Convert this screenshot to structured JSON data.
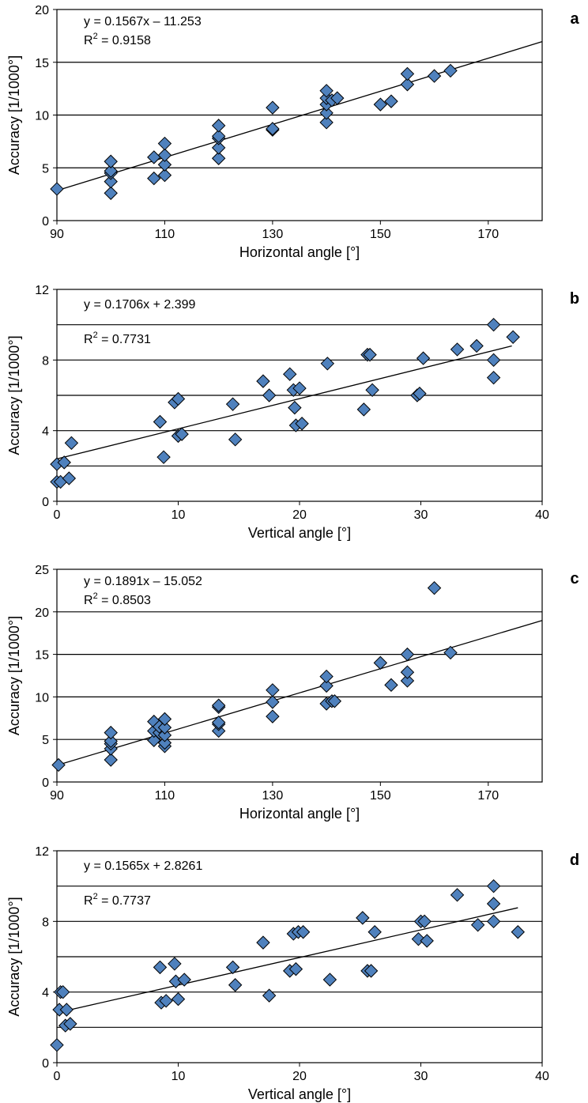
{
  "chart_data": [
    {
      "panel_label": "a",
      "type": "scatter",
      "xlabel": "Horizontal angle [°]",
      "ylabel": "Accuracy [1/1000°]",
      "xlim": [
        90,
        180
      ],
      "ylim": [
        0,
        20
      ],
      "xticks": [
        90,
        110,
        130,
        150,
        170
      ],
      "yticks": [
        0,
        5,
        10,
        15,
        20
      ],
      "gridlines_y": [
        5,
        10,
        15
      ],
      "equation": "y = 0.1567x – 11.253",
      "r2_prefix": "R",
      "r2_value": " = 0.9158",
      "trendline": {
        "slope": 0.1567,
        "intercept": -11.253,
        "x_range": [
          90,
          180
        ]
      },
      "marker_color": "#4F81BD",
      "points": [
        [
          90,
          3.0
        ],
        [
          100,
          2.6
        ],
        [
          100,
          3.7
        ],
        [
          100,
          4.5
        ],
        [
          100,
          4.7
        ],
        [
          100,
          5.6
        ],
        [
          108,
          4.0
        ],
        [
          108,
          6.0
        ],
        [
          110,
          4.3
        ],
        [
          110,
          5.3
        ],
        [
          110,
          6.2
        ],
        [
          110,
          7.3
        ],
        [
          120,
          5.9
        ],
        [
          120,
          6.9
        ],
        [
          120,
          7.8
        ],
        [
          120,
          8.0
        ],
        [
          120,
          9.0
        ],
        [
          130,
          8.6
        ],
        [
          130,
          8.7
        ],
        [
          130,
          10.7
        ],
        [
          140,
          9.3
        ],
        [
          140,
          10.2
        ],
        [
          140,
          11.0
        ],
        [
          140,
          11.6
        ],
        [
          140,
          12.3
        ],
        [
          141,
          11.4
        ],
        [
          142,
          11.6
        ],
        [
          150,
          11.0
        ],
        [
          152,
          11.3
        ],
        [
          155,
          12.9
        ],
        [
          155,
          13.9
        ],
        [
          160,
          13.7
        ],
        [
          163,
          14.2
        ]
      ]
    },
    {
      "panel_label": "b",
      "type": "scatter",
      "xlabel": "Vertical angle [°]",
      "ylabel": "Accuracy [1/1000°]",
      "xlim": [
        0,
        40
      ],
      "ylim": [
        0,
        12
      ],
      "xticks": [
        0,
        10,
        20,
        30,
        40
      ],
      "yticks": [
        0,
        4,
        8,
        12
      ],
      "gridlines_y": [
        2,
        4,
        6,
        8,
        10
      ],
      "equation": "y = 0.1706x + 2.399",
      "r2_prefix": "R",
      "r2_value": " = 0.7731",
      "trendline": {
        "slope": 0.1706,
        "intercept": 2.399,
        "x_range": [
          0,
          37.5
        ]
      },
      "marker_color": "#4F81BD",
      "points": [
        [
          0,
          1.1
        ],
        [
          0,
          2.1
        ],
        [
          0.3,
          1.1
        ],
        [
          0.6,
          2.2
        ],
        [
          1,
          1.3
        ],
        [
          1.2,
          3.3
        ],
        [
          8.5,
          4.5
        ],
        [
          8.8,
          2.5
        ],
        [
          9.7,
          5.6
        ],
        [
          10,
          5.8
        ],
        [
          10,
          3.7
        ],
        [
          10.3,
          3.8
        ],
        [
          14.5,
          5.5
        ],
        [
          14.7,
          3.5
        ],
        [
          17,
          6.8
        ],
        [
          17.5,
          6.0
        ],
        [
          19.2,
          7.2
        ],
        [
          19.5,
          6.3
        ],
        [
          19.6,
          5.3
        ],
        [
          19.7,
          4.3
        ],
        [
          20,
          6.4
        ],
        [
          20.2,
          4.4
        ],
        [
          22.3,
          7.8
        ],
        [
          25.3,
          5.2
        ],
        [
          25.6,
          8.3
        ],
        [
          25.8,
          8.3
        ],
        [
          26,
          6.3
        ],
        [
          29.7,
          6.0
        ],
        [
          29.9,
          6.1
        ],
        [
          30.2,
          8.1
        ],
        [
          33,
          8.6
        ],
        [
          34.6,
          8.8
        ],
        [
          36,
          10.0
        ],
        [
          36,
          8.0
        ],
        [
          36,
          7.0
        ],
        [
          37.6,
          9.3
        ]
      ]
    },
    {
      "panel_label": "c",
      "type": "scatter",
      "xlabel": "Horizontal angle [°]",
      "ylabel": "Accuracy [1/1000°]",
      "xlim": [
        90,
        180
      ],
      "ylim": [
        0,
        25
      ],
      "xticks": [
        90,
        110,
        130,
        150,
        170
      ],
      "yticks": [
        0,
        5,
        10,
        15,
        20,
        25
      ],
      "gridlines_y": [
        5,
        10,
        15,
        20
      ],
      "equation": "y = 0.1891x – 15.052",
      "r2_prefix": "R",
      "r2_value": " = 0.8503",
      "trendline": {
        "slope": 0.1891,
        "intercept": -15.052,
        "x_range": [
          90,
          180
        ]
      },
      "marker_color": "#4F81BD",
      "points": [
        [
          90.3,
          2.0
        ],
        [
          100,
          2.6
        ],
        [
          100,
          3.9
        ],
        [
          100,
          4.5
        ],
        [
          100,
          4.8
        ],
        [
          100,
          5.8
        ],
        [
          108,
          4.9
        ],
        [
          108,
          6.0
        ],
        [
          108,
          7.1
        ],
        [
          109,
          5.8
        ],
        [
          109,
          6.5
        ],
        [
          110,
          4.2
        ],
        [
          110,
          4.6
        ],
        [
          110,
          5.5
        ],
        [
          110,
          6.4
        ],
        [
          110,
          7.4
        ],
        [
          120,
          6.0
        ],
        [
          120,
          6.8
        ],
        [
          120,
          7.0
        ],
        [
          120,
          8.8
        ],
        [
          120,
          9.0
        ],
        [
          130,
          7.7
        ],
        [
          130,
          9.4
        ],
        [
          130,
          10.8
        ],
        [
          140,
          9.2
        ],
        [
          140,
          11.3
        ],
        [
          140,
          12.4
        ],
        [
          141,
          9.5
        ],
        [
          141.5,
          9.5
        ],
        [
          150,
          14.0
        ],
        [
          152,
          11.4
        ],
        [
          155,
          11.9
        ],
        [
          155,
          12.9
        ],
        [
          155,
          15.0
        ],
        [
          160,
          22.8
        ],
        [
          163,
          15.2
        ]
      ]
    },
    {
      "panel_label": "d",
      "type": "scatter",
      "xlabel": "Vertical angle [°]",
      "ylabel": "Accuracy [1/1000°]",
      "xlim": [
        0,
        40
      ],
      "ylim": [
        0,
        12
      ],
      "xticks": [
        0,
        10,
        20,
        30,
        40
      ],
      "yticks": [
        0,
        4,
        8,
        12
      ],
      "gridlines_y": [
        2,
        4,
        6,
        8,
        10
      ],
      "equation": "y = 0.1565x + 2.8261",
      "r2_prefix": "R",
      "r2_value": " = 0.7737",
      "trendline": {
        "slope": 0.1565,
        "intercept": 2.8261,
        "x_range": [
          0,
          38
        ]
      },
      "marker_color": "#4F81BD",
      "points": [
        [
          0,
          1.0
        ],
        [
          0.2,
          3.0
        ],
        [
          0.3,
          4.0
        ],
        [
          0.5,
          4.0
        ],
        [
          0.7,
          2.1
        ],
        [
          0.8,
          3.0
        ],
        [
          1.1,
          2.2
        ],
        [
          8.5,
          5.4
        ],
        [
          8.6,
          3.4
        ],
        [
          9,
          3.5
        ],
        [
          9.7,
          5.6
        ],
        [
          9.8,
          4.6
        ],
        [
          10,
          3.6
        ],
        [
          10.5,
          4.7
        ],
        [
          14.5,
          5.4
        ],
        [
          14.7,
          4.4
        ],
        [
          17,
          6.8
        ],
        [
          17.5,
          3.8
        ],
        [
          19.2,
          5.2
        ],
        [
          19.5,
          7.3
        ],
        [
          19.7,
          5.3
        ],
        [
          19.9,
          7.4
        ],
        [
          20.3,
          7.4
        ],
        [
          22.5,
          4.7
        ],
        [
          25.2,
          8.2
        ],
        [
          25.6,
          5.2
        ],
        [
          25.9,
          5.2
        ],
        [
          26.2,
          7.4
        ],
        [
          29.8,
          7.0
        ],
        [
          30,
          8.0
        ],
        [
          30.3,
          8.0
        ],
        [
          30.5,
          6.9
        ],
        [
          33,
          9.5
        ],
        [
          34.7,
          7.8
        ],
        [
          36,
          10.0
        ],
        [
          36,
          9.0
        ],
        [
          36,
          8.0
        ],
        [
          38,
          7.4
        ]
      ]
    }
  ]
}
